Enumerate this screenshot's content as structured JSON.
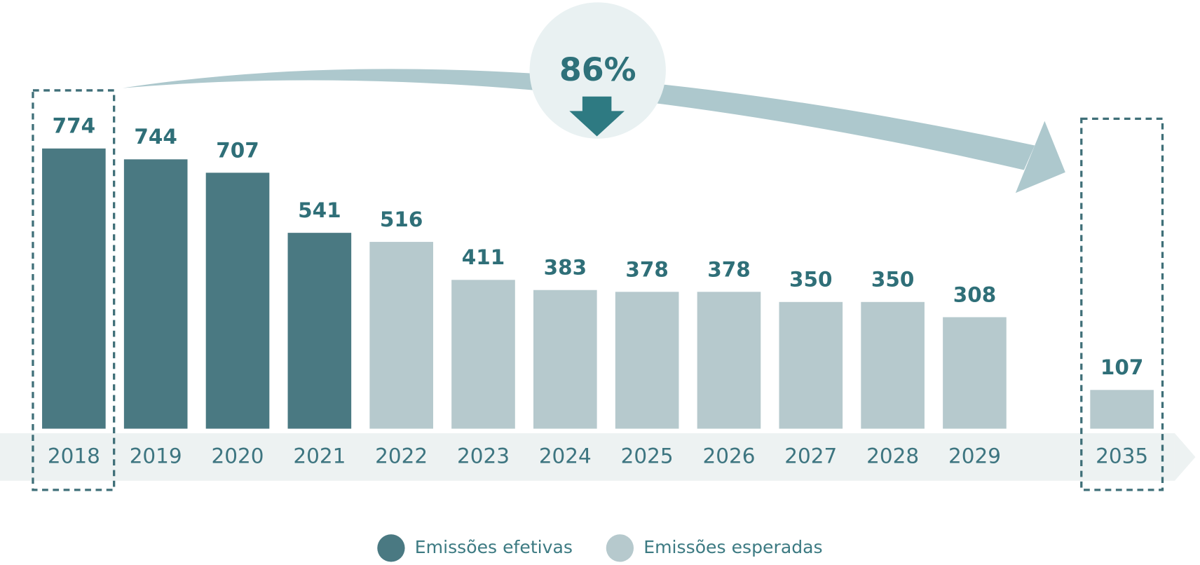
{
  "chart_data": {
    "type": "bar",
    "annotation": "86%",
    "categories": [
      "2018",
      "2019",
      "2020",
      "2021",
      "2022",
      "2023",
      "2024",
      "2025",
      "2026",
      "2027",
      "2028",
      "2029",
      "2035"
    ],
    "series": [
      {
        "name": "Emissões efetivas",
        "color": "#4a7982",
        "values": [
          774,
          744,
          707,
          541,
          null,
          null,
          null,
          null,
          null,
          null,
          null,
          null,
          null
        ]
      },
      {
        "name": "Emissões esperadas",
        "color": "#b6c9cd",
        "values": [
          null,
          null,
          null,
          null,
          516,
          411,
          383,
          378,
          378,
          350,
          350,
          308,
          107
        ]
      }
    ]
  }
}
